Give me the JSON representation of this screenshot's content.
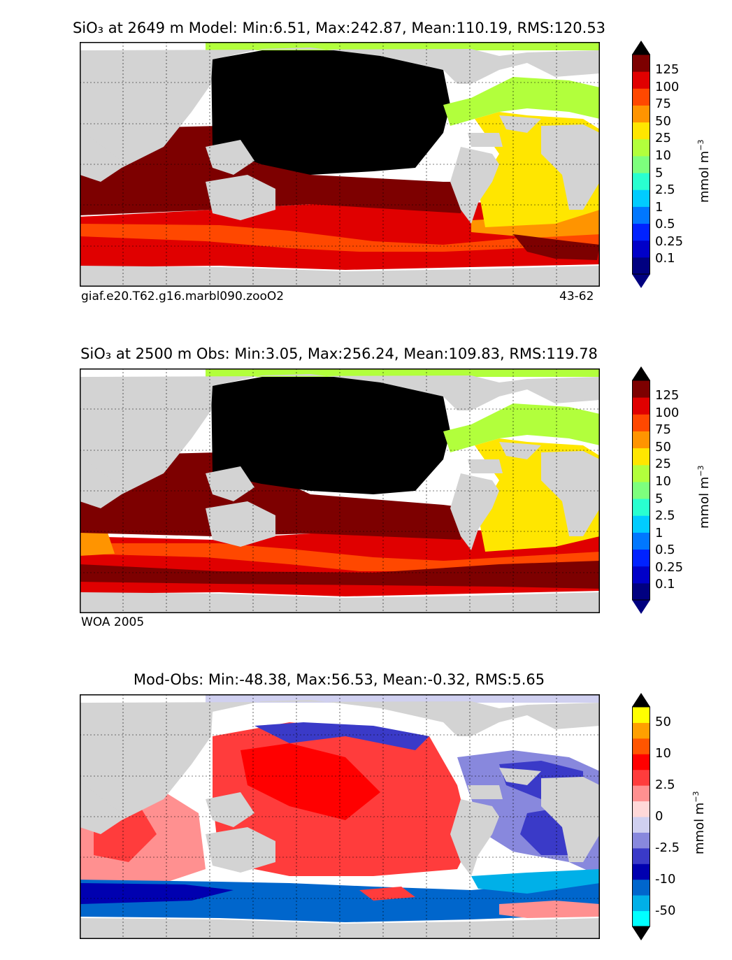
{
  "panels": [
    {
      "id": "model",
      "title": "SiO₃ at 2649 m Model: Min:6.51, Max:242.87, Mean:110.19, RMS:120.53",
      "caption_left": "giaf.e20.T62.g16.marbl090.zooO2",
      "caption_right": "43-62"
    },
    {
      "id": "obs",
      "title": "SiO₃ at 2500 m Obs: Min:3.05, Max:256.24, Mean:109.83, RMS:119.78",
      "caption_left": "WOA 2005",
      "caption_right": ""
    },
    {
      "id": "diff",
      "title": "Mod-Obs: Min:-48.38, Max:56.53, Mean:-0.32, RMS:5.65",
      "caption_left": "",
      "caption_right": ""
    }
  ],
  "colorbar_concentration": {
    "unit": "mmol m",
    "unit_exponent": "−3",
    "levels": [
      "0.1",
      "0.25",
      "0.5",
      "1",
      "2.5",
      "5",
      "10",
      "25",
      "50",
      "75",
      "100",
      "125"
    ],
    "colors": [
      "#000080",
      "#0000c8",
      "#0022ff",
      "#0077ff",
      "#00ccff",
      "#29ffd0",
      "#7dff7d",
      "#b2ff3c",
      "#ffe600",
      "#ff9400",
      "#ff4800",
      "#e00000",
      "#7d0000"
    ],
    "extend_under": "#000080",
    "extend_over": "#000000"
  },
  "colorbar_difference": {
    "unit": "mmol m",
    "unit_exponent": "−3",
    "tick_labels": [
      "-50",
      "-10",
      "-2.5",
      "0",
      "2.5",
      "10",
      "50"
    ],
    "colors": [
      "#00ffff",
      "#00b0e8",
      "#0066cc",
      "#0000b0",
      "#3a3ac8",
      "#8888dd",
      "#d0d0f0",
      "#ffd8d8",
      "#ff9090",
      "#ff3c3c",
      "#ff0000",
      "#ff5500",
      "#ffa000",
      "#ffff00"
    ],
    "extend_under": "#000000",
    "extend_over": "#000000"
  },
  "map_colors": {
    "land": "#d3d3d3",
    "missing": "#ffffff",
    "pacific_deep": "#000000",
    "coastline": "#000000",
    "grid": "#000000"
  }
}
